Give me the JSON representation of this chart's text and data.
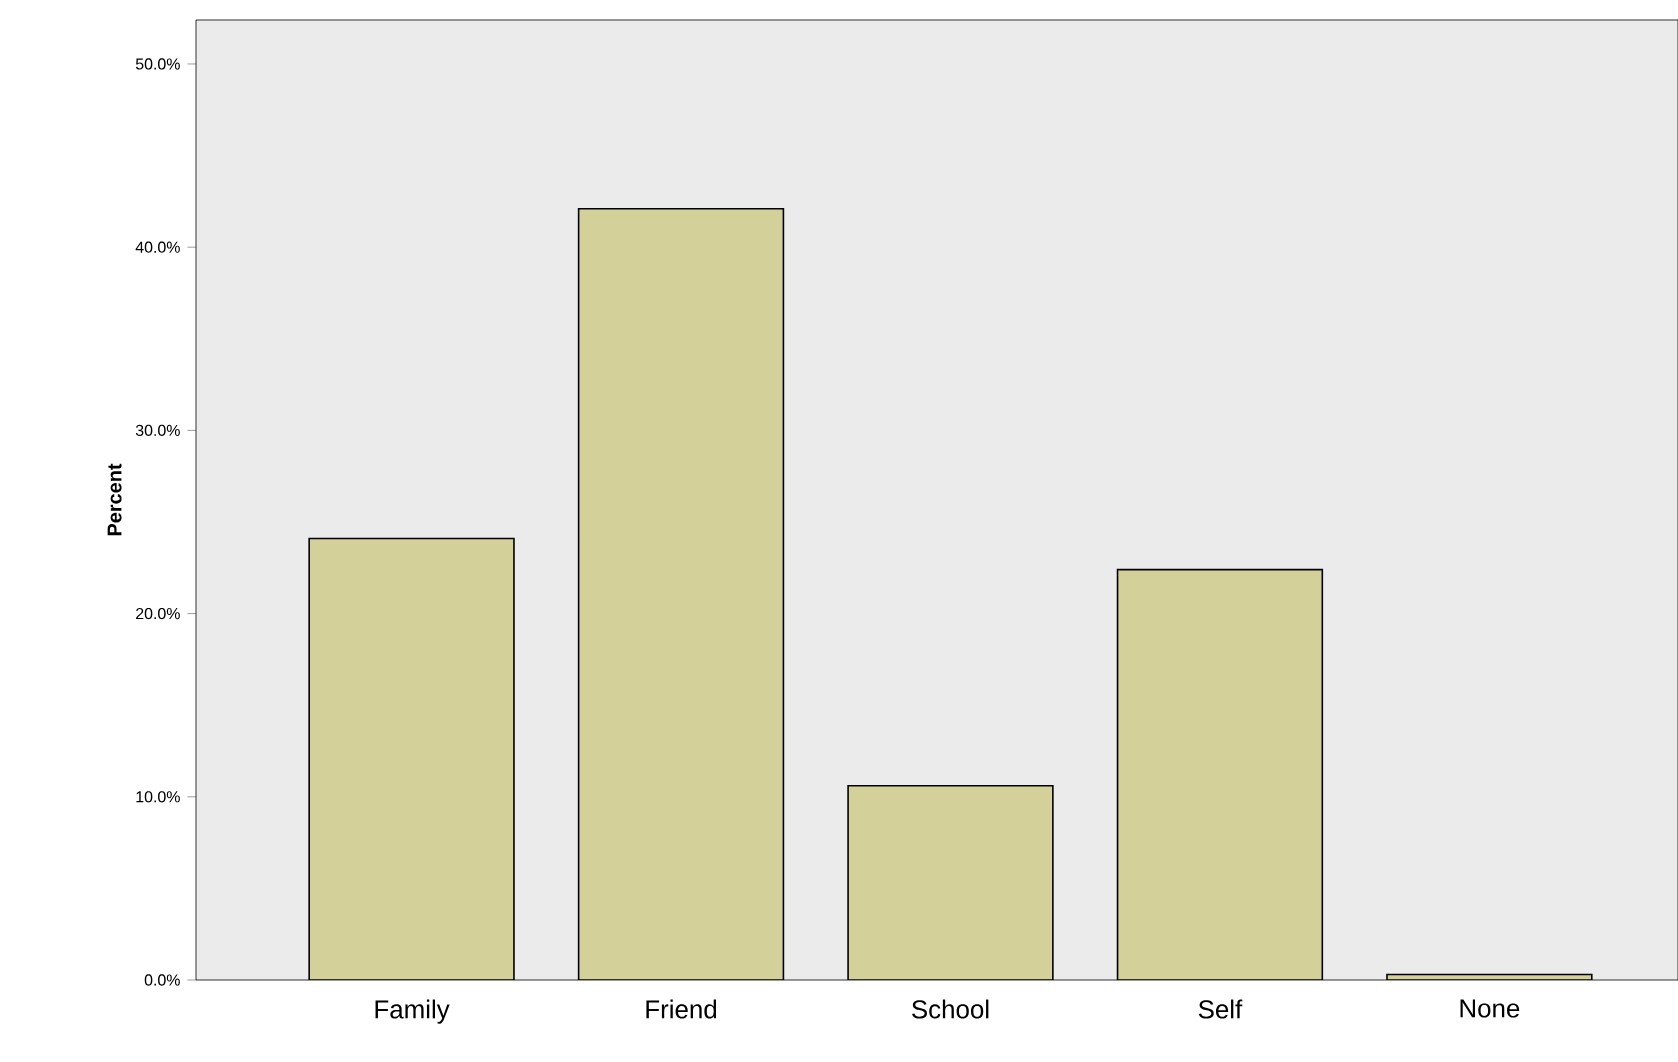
{
  "chart_data": {
    "type": "bar",
    "ylabel": "Percent",
    "categories": [
      "Family",
      "Friend",
      "School",
      "Self",
      "None"
    ],
    "values": [
      24.1,
      42.1,
      10.6,
      22.4,
      0.3
    ],
    "color": "#d4d09a",
    "ylim": [
      0,
      52.4
    ],
    "yticks": [
      {
        "value": 0,
        "label": "0.0%"
      },
      {
        "value": 10,
        "label": "10.0%"
      },
      {
        "value": 20,
        "label": "20.0%"
      },
      {
        "value": 30,
        "label": "30.0%"
      },
      {
        "value": 40,
        "label": "40.0%"
      },
      {
        "value": 50,
        "label": "50.0%"
      }
    ],
    "grid": false
  }
}
